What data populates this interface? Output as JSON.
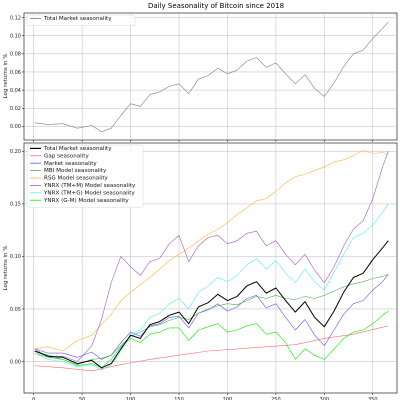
{
  "title": "Daily Seasonality of Bitcoin since 2018",
  "chart_data": [
    {
      "type": "line",
      "title": "Daily Seasonality of Bitcoin since 2018",
      "xlabel": "",
      "ylabel": "Log returns in %",
      "xlim": [
        -10,
        375
      ],
      "ylim": [
        -0.015,
        0.125
      ],
      "yticks": [
        0.0,
        0.02,
        0.04,
        0.06,
        0.08,
        0.1,
        0.12
      ],
      "ytick_labels": [
        "0.00",
        "0.02",
        "0.04",
        "0.06",
        "0.08",
        "0.10",
        "0.12"
      ],
      "xticks": [
        0,
        50,
        100,
        150,
        200,
        250,
        300,
        350
      ],
      "xtick_labels": [],
      "grid": true,
      "legend_position": "top-left",
      "series": [
        {
          "name": "Total Market seasonality",
          "color": "#7f7f7f",
          "x": [
            1,
            15,
            30,
            45,
            60,
            70,
            80,
            90,
            100,
            110,
            120,
            130,
            140,
            150,
            160,
            170,
            180,
            190,
            200,
            210,
            220,
            230,
            240,
            250,
            260,
            270,
            280,
            290,
            300,
            310,
            320,
            330,
            340,
            350,
            360,
            366
          ],
          "values": [
            0.004,
            0.002,
            0.003,
            -0.002,
            0.001,
            -0.006,
            -0.002,
            0.012,
            0.025,
            0.022,
            0.035,
            0.038,
            0.044,
            0.047,
            0.036,
            0.052,
            0.056,
            0.064,
            0.058,
            0.062,
            0.072,
            0.076,
            0.065,
            0.07,
            0.058,
            0.047,
            0.057,
            0.042,
            0.033,
            0.048,
            0.066,
            0.08,
            0.084,
            0.097,
            0.108,
            0.115
          ]
        }
      ]
    },
    {
      "type": "line",
      "title": "",
      "xlabel": "",
      "ylabel": "Log returns in %",
      "xlim": [
        -10,
        375
      ],
      "ylim": [
        -0.03,
        0.208
      ],
      "yticks": [
        0.0,
        0.05,
        0.1,
        0.15,
        0.2
      ],
      "ytick_labels": [
        "0.00",
        "0.05",
        "0.10",
        "0.15",
        "0.20"
      ],
      "xticks": [
        0,
        50,
        100,
        150,
        200,
        250,
        300,
        350
      ],
      "xtick_labels": [
        "0",
        "50",
        "100",
        "150",
        "200",
        "250",
        "300",
        "350"
      ],
      "grid": true,
      "legend_position": "top-left",
      "series": [
        {
          "name": "Total Market seasonality",
          "color": "#000000",
          "x": [
            1,
            15,
            30,
            45,
            60,
            70,
            80,
            90,
            100,
            110,
            120,
            130,
            140,
            150,
            160,
            170,
            180,
            190,
            200,
            210,
            220,
            230,
            240,
            250,
            260,
            270,
            280,
            290,
            300,
            310,
            320,
            330,
            340,
            350,
            360,
            366
          ],
          "values": [
            0.01,
            0.005,
            0.004,
            -0.002,
            0.001,
            -0.006,
            -0.002,
            0.012,
            0.025,
            0.022,
            0.035,
            0.038,
            0.044,
            0.047,
            0.036,
            0.052,
            0.056,
            0.064,
            0.058,
            0.062,
            0.072,
            0.076,
            0.065,
            0.07,
            0.058,
            0.047,
            0.057,
            0.042,
            0.033,
            0.048,
            0.066,
            0.08,
            0.084,
            0.097,
            0.108,
            0.115
          ]
        },
        {
          "name": "Gap seasonality",
          "color": "#ff6b6b",
          "x": [
            1,
            30,
            60,
            90,
            120,
            150,
            180,
            210,
            240,
            270,
            300,
            330,
            366
          ],
          "values": [
            -0.004,
            -0.006,
            -0.009,
            -0.003,
            0.002,
            0.006,
            0.01,
            0.012,
            0.014,
            0.016,
            0.022,
            0.026,
            0.034
          ]
        },
        {
          "name": "Market seasonality",
          "color": "#5a5aff",
          "x": [
            1,
            15,
            30,
            45,
            60,
            70,
            80,
            90,
            100,
            110,
            120,
            130,
            140,
            150,
            160,
            170,
            180,
            190,
            200,
            210,
            220,
            230,
            240,
            250,
            260,
            270,
            280,
            290,
            300,
            310,
            320,
            330,
            340,
            350,
            360,
            366
          ],
          "values": [
            0.012,
            0.008,
            0.008,
            0.004,
            0.009,
            0.002,
            0.006,
            0.018,
            0.028,
            0.024,
            0.034,
            0.036,
            0.042,
            0.043,
            0.032,
            0.046,
            0.049,
            0.055,
            0.048,
            0.052,
            0.06,
            0.063,
            0.051,
            0.055,
            0.042,
            0.03,
            0.04,
            0.025,
            0.015,
            0.03,
            0.045,
            0.055,
            0.058,
            0.068,
            0.076,
            0.083
          ]
        },
        {
          "name": "MBI Model seasonality",
          "color": "#4caf50",
          "x": [
            1,
            15,
            30,
            45,
            60,
            70,
            80,
            90,
            100,
            110,
            120,
            130,
            140,
            150,
            160,
            170,
            180,
            190,
            200,
            210,
            220,
            230,
            240,
            250,
            260,
            270,
            280,
            290,
            300,
            310,
            320,
            330,
            340,
            350,
            360,
            366
          ],
          "values": [
            0.008,
            0.004,
            0.002,
            -0.003,
            0.002,
            0.003,
            0.006,
            0.015,
            0.024,
            0.028,
            0.033,
            0.035,
            0.039,
            0.042,
            0.04,
            0.046,
            0.05,
            0.053,
            0.055,
            0.054,
            0.058,
            0.062,
            0.06,
            0.063,
            0.06,
            0.059,
            0.062,
            0.06,
            0.063,
            0.067,
            0.071,
            0.074,
            0.076,
            0.079,
            0.081,
            0.083
          ]
        },
        {
          "name": "RSG Model seasonality",
          "color": "#ffb347",
          "x": [
            1,
            15,
            30,
            45,
            60,
            70,
            80,
            90,
            100,
            110,
            120,
            130,
            140,
            150,
            160,
            170,
            180,
            190,
            200,
            210,
            220,
            230,
            240,
            250,
            260,
            270,
            280,
            290,
            300,
            310,
            320,
            330,
            340,
            350,
            360,
            366
          ],
          "values": [
            0.012,
            0.014,
            0.01,
            0.02,
            0.025,
            0.035,
            0.045,
            0.058,
            0.066,
            0.073,
            0.08,
            0.088,
            0.096,
            0.102,
            0.108,
            0.115,
            0.121,
            0.126,
            0.132,
            0.14,
            0.146,
            0.153,
            0.155,
            0.162,
            0.17,
            0.176,
            0.178,
            0.182,
            0.185,
            0.19,
            0.192,
            0.196,
            0.201,
            0.198,
            0.199,
            0.197
          ]
        },
        {
          "name": "YNRX (TM+M) Model seasonality",
          "color": "#a05cc8",
          "x": [
            1,
            15,
            30,
            45,
            60,
            70,
            80,
            90,
            100,
            110,
            120,
            130,
            140,
            150,
            160,
            170,
            180,
            190,
            200,
            210,
            220,
            230,
            240,
            250,
            260,
            270,
            280,
            290,
            300,
            310,
            320,
            330,
            340,
            350,
            360,
            366
          ],
          "values": [
            0.012,
            0.004,
            0.005,
            0.0,
            0.015,
            0.04,
            0.075,
            0.1,
            0.09,
            0.082,
            0.095,
            0.098,
            0.112,
            0.12,
            0.095,
            0.11,
            0.118,
            0.12,
            0.112,
            0.115,
            0.122,
            0.124,
            0.11,
            0.115,
            0.102,
            0.092,
            0.102,
            0.087,
            0.075,
            0.09,
            0.11,
            0.126,
            0.134,
            0.155,
            0.185,
            0.2
          ]
        },
        {
          "name": "YNRX (TM+G) Model seasonality",
          "color": "#55eeee",
          "x": [
            1,
            15,
            30,
            45,
            60,
            70,
            80,
            90,
            100,
            110,
            120,
            130,
            140,
            150,
            160,
            170,
            180,
            190,
            200,
            210,
            220,
            230,
            240,
            250,
            260,
            270,
            280,
            290,
            300,
            310,
            320,
            330,
            340,
            350,
            360,
            366
          ],
          "values": [
            0.008,
            0.002,
            0.0,
            -0.005,
            -0.003,
            -0.008,
            -0.003,
            0.01,
            0.026,
            0.03,
            0.042,
            0.046,
            0.055,
            0.06,
            0.05,
            0.066,
            0.072,
            0.08,
            0.076,
            0.082,
            0.092,
            0.098,
            0.088,
            0.096,
            0.084,
            0.075,
            0.088,
            0.076,
            0.068,
            0.085,
            0.102,
            0.118,
            0.122,
            0.13,
            0.142,
            0.15
          ]
        },
        {
          "name": "YNRX (G-M) Model seasonality",
          "color": "#00ee00",
          "x": [
            1,
            15,
            30,
            45,
            60,
            70,
            80,
            90,
            100,
            110,
            120,
            130,
            140,
            150,
            160,
            170,
            180,
            190,
            200,
            210,
            220,
            230,
            240,
            250,
            260,
            270,
            280,
            290,
            300,
            310,
            320,
            330,
            340,
            350,
            360,
            366
          ],
          "values": [
            0.01,
            0.006,
            0.002,
            -0.004,
            -0.002,
            -0.006,
            0.002,
            0.014,
            0.022,
            0.018,
            0.026,
            0.028,
            0.032,
            0.032,
            0.02,
            0.03,
            0.033,
            0.036,
            0.028,
            0.03,
            0.034,
            0.036,
            0.026,
            0.028,
            0.018,
            0.002,
            0.012,
            0.006,
            0.002,
            0.012,
            0.022,
            0.028,
            0.03,
            0.036,
            0.044,
            0.048
          ]
        }
      ]
    }
  ]
}
